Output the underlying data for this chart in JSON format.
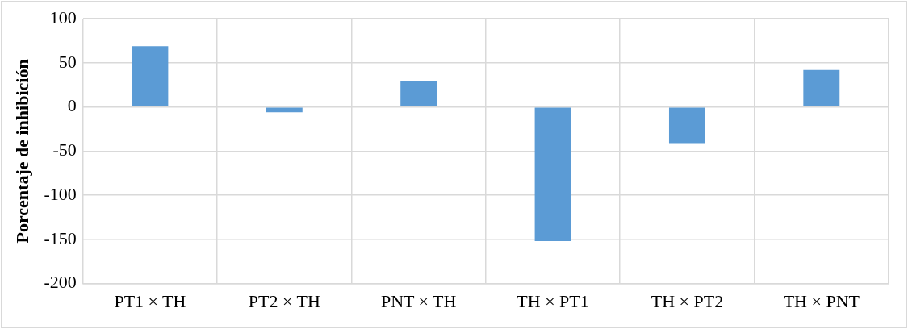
{
  "chart_data": {
    "type": "bar",
    "ylabel": "Porcentaje de inhibición",
    "categories": [
      "PT1 × TH",
      "PT2 × TH",
      "PNT × TH",
      "TH × PT1",
      "TH × PT2",
      "TH × PNT"
    ],
    "values": [
      69,
      -6,
      29,
      -152,
      -41,
      42
    ],
    "color": "#5b9bd5",
    "ylim": [
      -200,
      100
    ],
    "yticks": [
      -200,
      -150,
      -100,
      -50,
      0,
      50,
      100
    ],
    "grid": true,
    "legend": false
  }
}
